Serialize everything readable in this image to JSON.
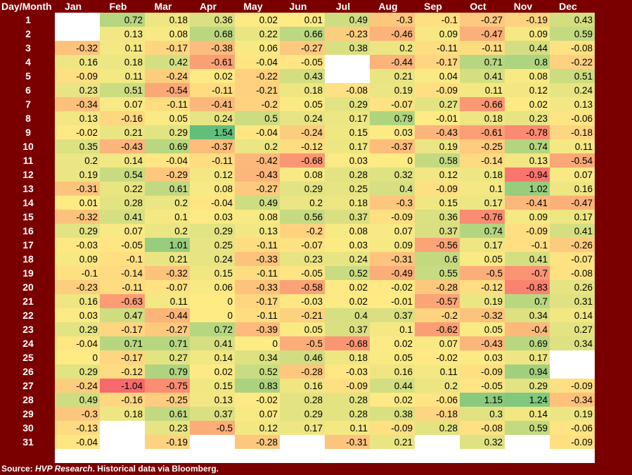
{
  "chart_data": {
    "type": "heatmap",
    "corner_label": "Day/Month",
    "columns": [
      "Jan",
      "Feb",
      "Mar",
      "Apr",
      "May",
      "Jun",
      "Jul",
      "Aug",
      "Sep",
      "Oct",
      "Nov",
      "Dec"
    ],
    "rows": [
      "1",
      "2",
      "3",
      "4",
      "5",
      "6",
      "7",
      "8",
      "9",
      "10",
      "11",
      "12",
      "13",
      "14",
      "15",
      "16",
      "17",
      "18",
      "19",
      "20",
      "21",
      "22",
      "23",
      "24",
      "25",
      "26",
      "27",
      "28",
      "29",
      "30",
      "31"
    ],
    "values": [
      [
        null,
        0.72,
        0.18,
        0.36,
        0.02,
        0.01,
        0.49,
        -0.3,
        -0.1,
        -0.27,
        -0.19,
        0.43
      ],
      [
        null,
        0.13,
        0.08,
        0.68,
        0.22,
        0.66,
        -0.23,
        -0.46,
        0.09,
        -0.47,
        0.09,
        0.59
      ],
      [
        -0.32,
        0.11,
        -0.17,
        -0.38,
        0.06,
        -0.27,
        0.38,
        0.2,
        -0.11,
        -0.11,
        0.44,
        -0.08
      ],
      [
        0.16,
        0.18,
        0.42,
        -0.61,
        -0.04,
        -0.05,
        null,
        -0.44,
        -0.17,
        0.71,
        0.8,
        -0.22
      ],
      [
        -0.09,
        0.11,
        -0.24,
        0.02,
        -0.22,
        0.43,
        null,
        0.21,
        0.04,
        0.41,
        0.08,
        0.51
      ],
      [
        0.23,
        0.51,
        -0.54,
        -0.11,
        -0.21,
        0.18,
        -0.08,
        0.19,
        -0.09,
        0.11,
        0.12,
        0.24
      ],
      [
        -0.34,
        0.07,
        -0.11,
        -0.41,
        -0.2,
        0.05,
        0.29,
        -0.07,
        0.27,
        -0.66,
        0.02,
        0.13
      ],
      [
        0.13,
        -0.16,
        0.05,
        0.24,
        0.5,
        0.24,
        0.17,
        0.79,
        -0.01,
        0.18,
        0.23,
        -0.06
      ],
      [
        -0.02,
        0.21,
        0.29,
        1.54,
        -0.04,
        -0.24,
        0.15,
        0.03,
        -0.43,
        -0.61,
        -0.78,
        -0.18
      ],
      [
        0.35,
        -0.43,
        0.69,
        -0.37,
        0.2,
        -0.12,
        0.17,
        -0.37,
        0.19,
        -0.25,
        0.74,
        0.11
      ],
      [
        0.2,
        0.14,
        -0.04,
        -0.11,
        -0.42,
        -0.68,
        0.03,
        0,
        0.58,
        -0.14,
        0.13,
        -0.54
      ],
      [
        0.19,
        0.54,
        -0.29,
        0.12,
        -0.43,
        0.08,
        0.28,
        0.32,
        0.12,
        0.18,
        -0.94,
        0.07
      ],
      [
        -0.31,
        0.22,
        0.61,
        0.08,
        -0.27,
        0.29,
        0.25,
        0.4,
        -0.09,
        0.1,
        1.02,
        0.16
      ],
      [
        0.01,
        0.28,
        0.2,
        -0.04,
        0.49,
        0.2,
        0.18,
        -0.3,
        0.15,
        0.17,
        -0.41,
        -0.47
      ],
      [
        -0.32,
        0.41,
        0.1,
        0.03,
        0.08,
        0.56,
        0.37,
        -0.09,
        0.36,
        -0.76,
        0.09,
        0.17
      ],
      [
        0.29,
        0.07,
        0.2,
        0.29,
        0.13,
        -0.2,
        0.08,
        0.07,
        0.37,
        0.74,
        -0.09,
        0.41
      ],
      [
        -0.03,
        -0.05,
        1.01,
        0.25,
        -0.11,
        -0.07,
        0.03,
        0.09,
        -0.56,
        0.17,
        -0.1,
        -0.26
      ],
      [
        0.09,
        -0.1,
        0.21,
        0.24,
        -0.33,
        0.23,
        0.24,
        -0.31,
        0.6,
        0.05,
        0.41,
        -0.07
      ],
      [
        -0.1,
        -0.14,
        -0.32,
        0.15,
        -0.11,
        -0.05,
        0.52,
        -0.49,
        0.55,
        -0.5,
        -0.7,
        -0.08
      ],
      [
        -0.23,
        -0.11,
        -0.07,
        0.06,
        -0.33,
        -0.58,
        0.02,
        -0.02,
        -0.28,
        -0.12,
        -0.83,
        0.26
      ],
      [
        0.16,
        -0.63,
        0.11,
        0,
        -0.17,
        -0.03,
        0.02,
        -0.01,
        -0.57,
        0.19,
        0.7,
        0.31
      ],
      [
        0.03,
        0.47,
        -0.44,
        0,
        -0.11,
        -0.21,
        0.4,
        0.37,
        -0.2,
        -0.32,
        0.34,
        0.14
      ],
      [
        0.29,
        -0.17,
        -0.27,
        0.72,
        -0.39,
        0.05,
        0.37,
        0.1,
        -0.62,
        0.05,
        -0.4,
        0.27
      ],
      [
        -0.04,
        0.71,
        0.71,
        0.41,
        0,
        -0.5,
        -0.68,
        0.02,
        0.07,
        -0.43,
        0.69,
        0.34
      ],
      [
        0,
        -0.17,
        0.27,
        0.14,
        0.34,
        0.46,
        0.18,
        0.05,
        -0.02,
        0.03,
        0.17,
        null
      ],
      [
        0.29,
        -0.12,
        0.79,
        0.02,
        0.52,
        -0.28,
        -0.03,
        0.16,
        0.11,
        -0.09,
        0.94,
        null
      ],
      [
        -0.24,
        -1.04,
        -0.75,
        0.15,
        0.83,
        0.16,
        -0.09,
        0.44,
        0.2,
        -0.05,
        0.29,
        -0.09
      ],
      [
        0.49,
        -0.16,
        -0.25,
        0.13,
        -0.02,
        0.28,
        0.28,
        0.02,
        -0.06,
        1.15,
        1.24,
        -0.34
      ],
      [
        -0.3,
        0.18,
        0.61,
        0.37,
        0.07,
        0.29,
        0.28,
        0.38,
        -0.18,
        0.3,
        0.14,
        0.19
      ],
      [
        -0.13,
        null,
        0.23,
        -0.5,
        0.12,
        0.17,
        0.11,
        -0.09,
        0.28,
        -0.08,
        0.59,
        -0.06
      ],
      [
        -0.04,
        null,
        -0.19,
        null,
        -0.28,
        null,
        -0.31,
        0.21,
        null,
        0.32,
        null,
        -0.09
      ]
    ],
    "color_scale": {
      "negative": "#f8696b",
      "middle": "#ffeb84",
      "positive": "#63be7b",
      "empty": "#ffffff"
    }
  },
  "page": {
    "background": "#7a0000",
    "source_prefix": "Source: ",
    "source_name": "HVP Research",
    "source_suffix": ".  Historical data via Bloomberg."
  }
}
